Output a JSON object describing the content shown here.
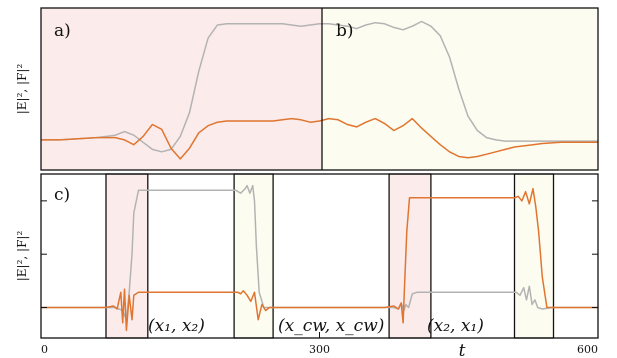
{
  "chart_data": [
    {
      "type": "line",
      "panel_labels": [
        "a)",
        "b)"
      ],
      "ylabel": "|E|², |F|²",
      "shading": {
        "left": "#fbeceb",
        "right": "#fdfcf0"
      },
      "series": [
        {
          "color": "#b3b3b3",
          "x": [
            0,
            20,
            40,
            60,
            80,
            90,
            100,
            110,
            120,
            130,
            140,
            150,
            160,
            170,
            180,
            190,
            200,
            210,
            220,
            230,
            240,
            250,
            260,
            270,
            280,
            290,
            300,
            310,
            320,
            330,
            340,
            350,
            360,
            370,
            380,
            390,
            400,
            410,
            420,
            430,
            440,
            450,
            460,
            470,
            480,
            490,
            500,
            510,
            520,
            530,
            540,
            550,
            560,
            570,
            580,
            600
          ],
          "y": [
            0.02,
            0.02,
            0.03,
            0.04,
            0.06,
            0.09,
            0.06,
            0.0,
            -0.06,
            -0.08,
            -0.06,
            0.05,
            0.25,
            0.6,
            0.88,
            0.99,
            1.0,
            1.0,
            1.0,
            1.0,
            1.0,
            1.0,
            1.0,
            0.99,
            0.98,
            0.99,
            1.0,
            1.0,
            0.99,
            0.98,
            0.96,
            0.99,
            1.01,
            1.0,
            0.97,
            0.95,
            0.98,
            1.02,
            0.98,
            0.9,
            0.72,
            0.45,
            0.22,
            0.1,
            0.04,
            0.02,
            0.01,
            0.01,
            0.01,
            0.01,
            0.01,
            0.01,
            0.01,
            0.01,
            0.01,
            0.01
          ]
        },
        {
          "color": "#e07530",
          "x": [
            0,
            20,
            40,
            60,
            80,
            90,
            100,
            110,
            120,
            130,
            140,
            150,
            160,
            170,
            180,
            190,
            200,
            210,
            220,
            230,
            240,
            250,
            260,
            270,
            280,
            290,
            300,
            310,
            320,
            330,
            340,
            350,
            360,
            370,
            380,
            390,
            400,
            410,
            420,
            430,
            440,
            450,
            460,
            470,
            480,
            490,
            500,
            510,
            520,
            530,
            540,
            560,
            580,
            600
          ],
          "y": [
            0.02,
            0.02,
            0.03,
            0.04,
            0.04,
            0.02,
            -0.02,
            0.05,
            0.15,
            0.11,
            -0.05,
            -0.14,
            -0.05,
            0.08,
            0.14,
            0.17,
            0.18,
            0.18,
            0.18,
            0.18,
            0.18,
            0.18,
            0.19,
            0.2,
            0.19,
            0.17,
            0.18,
            0.2,
            0.19,
            0.15,
            0.13,
            0.17,
            0.2,
            0.16,
            0.1,
            0.14,
            0.2,
            0.12,
            0.05,
            -0.02,
            -0.08,
            -0.12,
            -0.13,
            -0.12,
            -0.1,
            -0.08,
            -0.06,
            -0.04,
            -0.03,
            -0.02,
            -0.01,
            0.0,
            0.0,
            0.0
          ]
        }
      ]
    },
    {
      "type": "line",
      "panel_label": "c)",
      "ylabel": "|E|², |F|²",
      "xlabel": "t",
      "x_ticks": [
        "0",
        "300",
        "600"
      ],
      "xlim": [
        0,
        600
      ],
      "box_labels": [
        "(x₁, x₂)",
        "(x_cw, x_cw)",
        "(x₂, x₁)"
      ],
      "boxes": [
        [
          70,
          115,
          "pink"
        ],
        [
          208,
          250,
          "cream"
        ],
        [
          375,
          420,
          "pink"
        ],
        [
          510,
          552,
          "cream"
        ]
      ],
      "series": [
        {
          "color": "#b3b3b3",
          "x": [
            0,
            70,
            80,
            88,
            92,
            95,
            98,
            100,
            105,
            115,
            140,
            200,
            210,
            215,
            220,
            222,
            225,
            228,
            230,
            232,
            235,
            240,
            245,
            250,
            260,
            300,
            370,
            380,
            385,
            388,
            391,
            393,
            396,
            400,
            405,
            420,
            450,
            505,
            512,
            516,
            520,
            523,
            526,
            529,
            532,
            535,
            540,
            550,
            560,
            600
          ],
          "y": [
            0.2,
            0.2,
            0.2,
            0.18,
            0.12,
            0.3,
            0.55,
            0.82,
            0.97,
            0.97,
            0.97,
            0.97,
            0.97,
            0.95,
            0.98,
            1.0,
            0.95,
            1.0,
            0.9,
            0.6,
            0.3,
            0.2,
            0.2,
            0.2,
            0.2,
            0.2,
            0.2,
            0.2,
            0.19,
            0.23,
            0.18,
            0.22,
            0.2,
            0.29,
            0.3,
            0.3,
            0.3,
            0.3,
            0.3,
            0.28,
            0.33,
            0.25,
            0.34,
            0.22,
            0.25,
            0.2,
            0.19,
            0.2,
            0.2,
            0.2
          ]
        },
        {
          "color": "#e07530",
          "x": [
            0,
            70,
            78,
            82,
            86,
            88,
            90,
            92,
            95,
            98,
            100,
            105,
            115,
            200,
            212,
            215,
            218,
            222,
            226,
            230,
            234,
            238,
            242,
            246,
            250,
            260,
            300,
            370,
            380,
            385,
            388,
            390,
            392,
            394,
            397,
            400,
            405,
            420,
            450,
            505,
            510,
            514,
            518,
            522,
            526,
            530,
            533,
            536,
            540,
            545,
            552,
            600
          ],
          "y": [
            0.2,
            0.2,
            0.21,
            0.19,
            0.3,
            0.1,
            0.32,
            0.05,
            0.28,
            0.12,
            0.28,
            0.3,
            0.3,
            0.3,
            0.3,
            0.29,
            0.31,
            0.28,
            0.24,
            0.3,
            0.12,
            0.22,
            0.18,
            0.2,
            0.2,
            0.2,
            0.2,
            0.2,
            0.21,
            0.19,
            0.23,
            0.1,
            0.4,
            0.7,
            0.92,
            0.92,
            0.92,
            0.92,
            0.92,
            0.92,
            0.92,
            0.93,
            0.9,
            0.96,
            0.88,
            0.98,
            0.86,
            0.7,
            0.4,
            0.2,
            0.2,
            0.2
          ]
        }
      ]
    }
  ]
}
